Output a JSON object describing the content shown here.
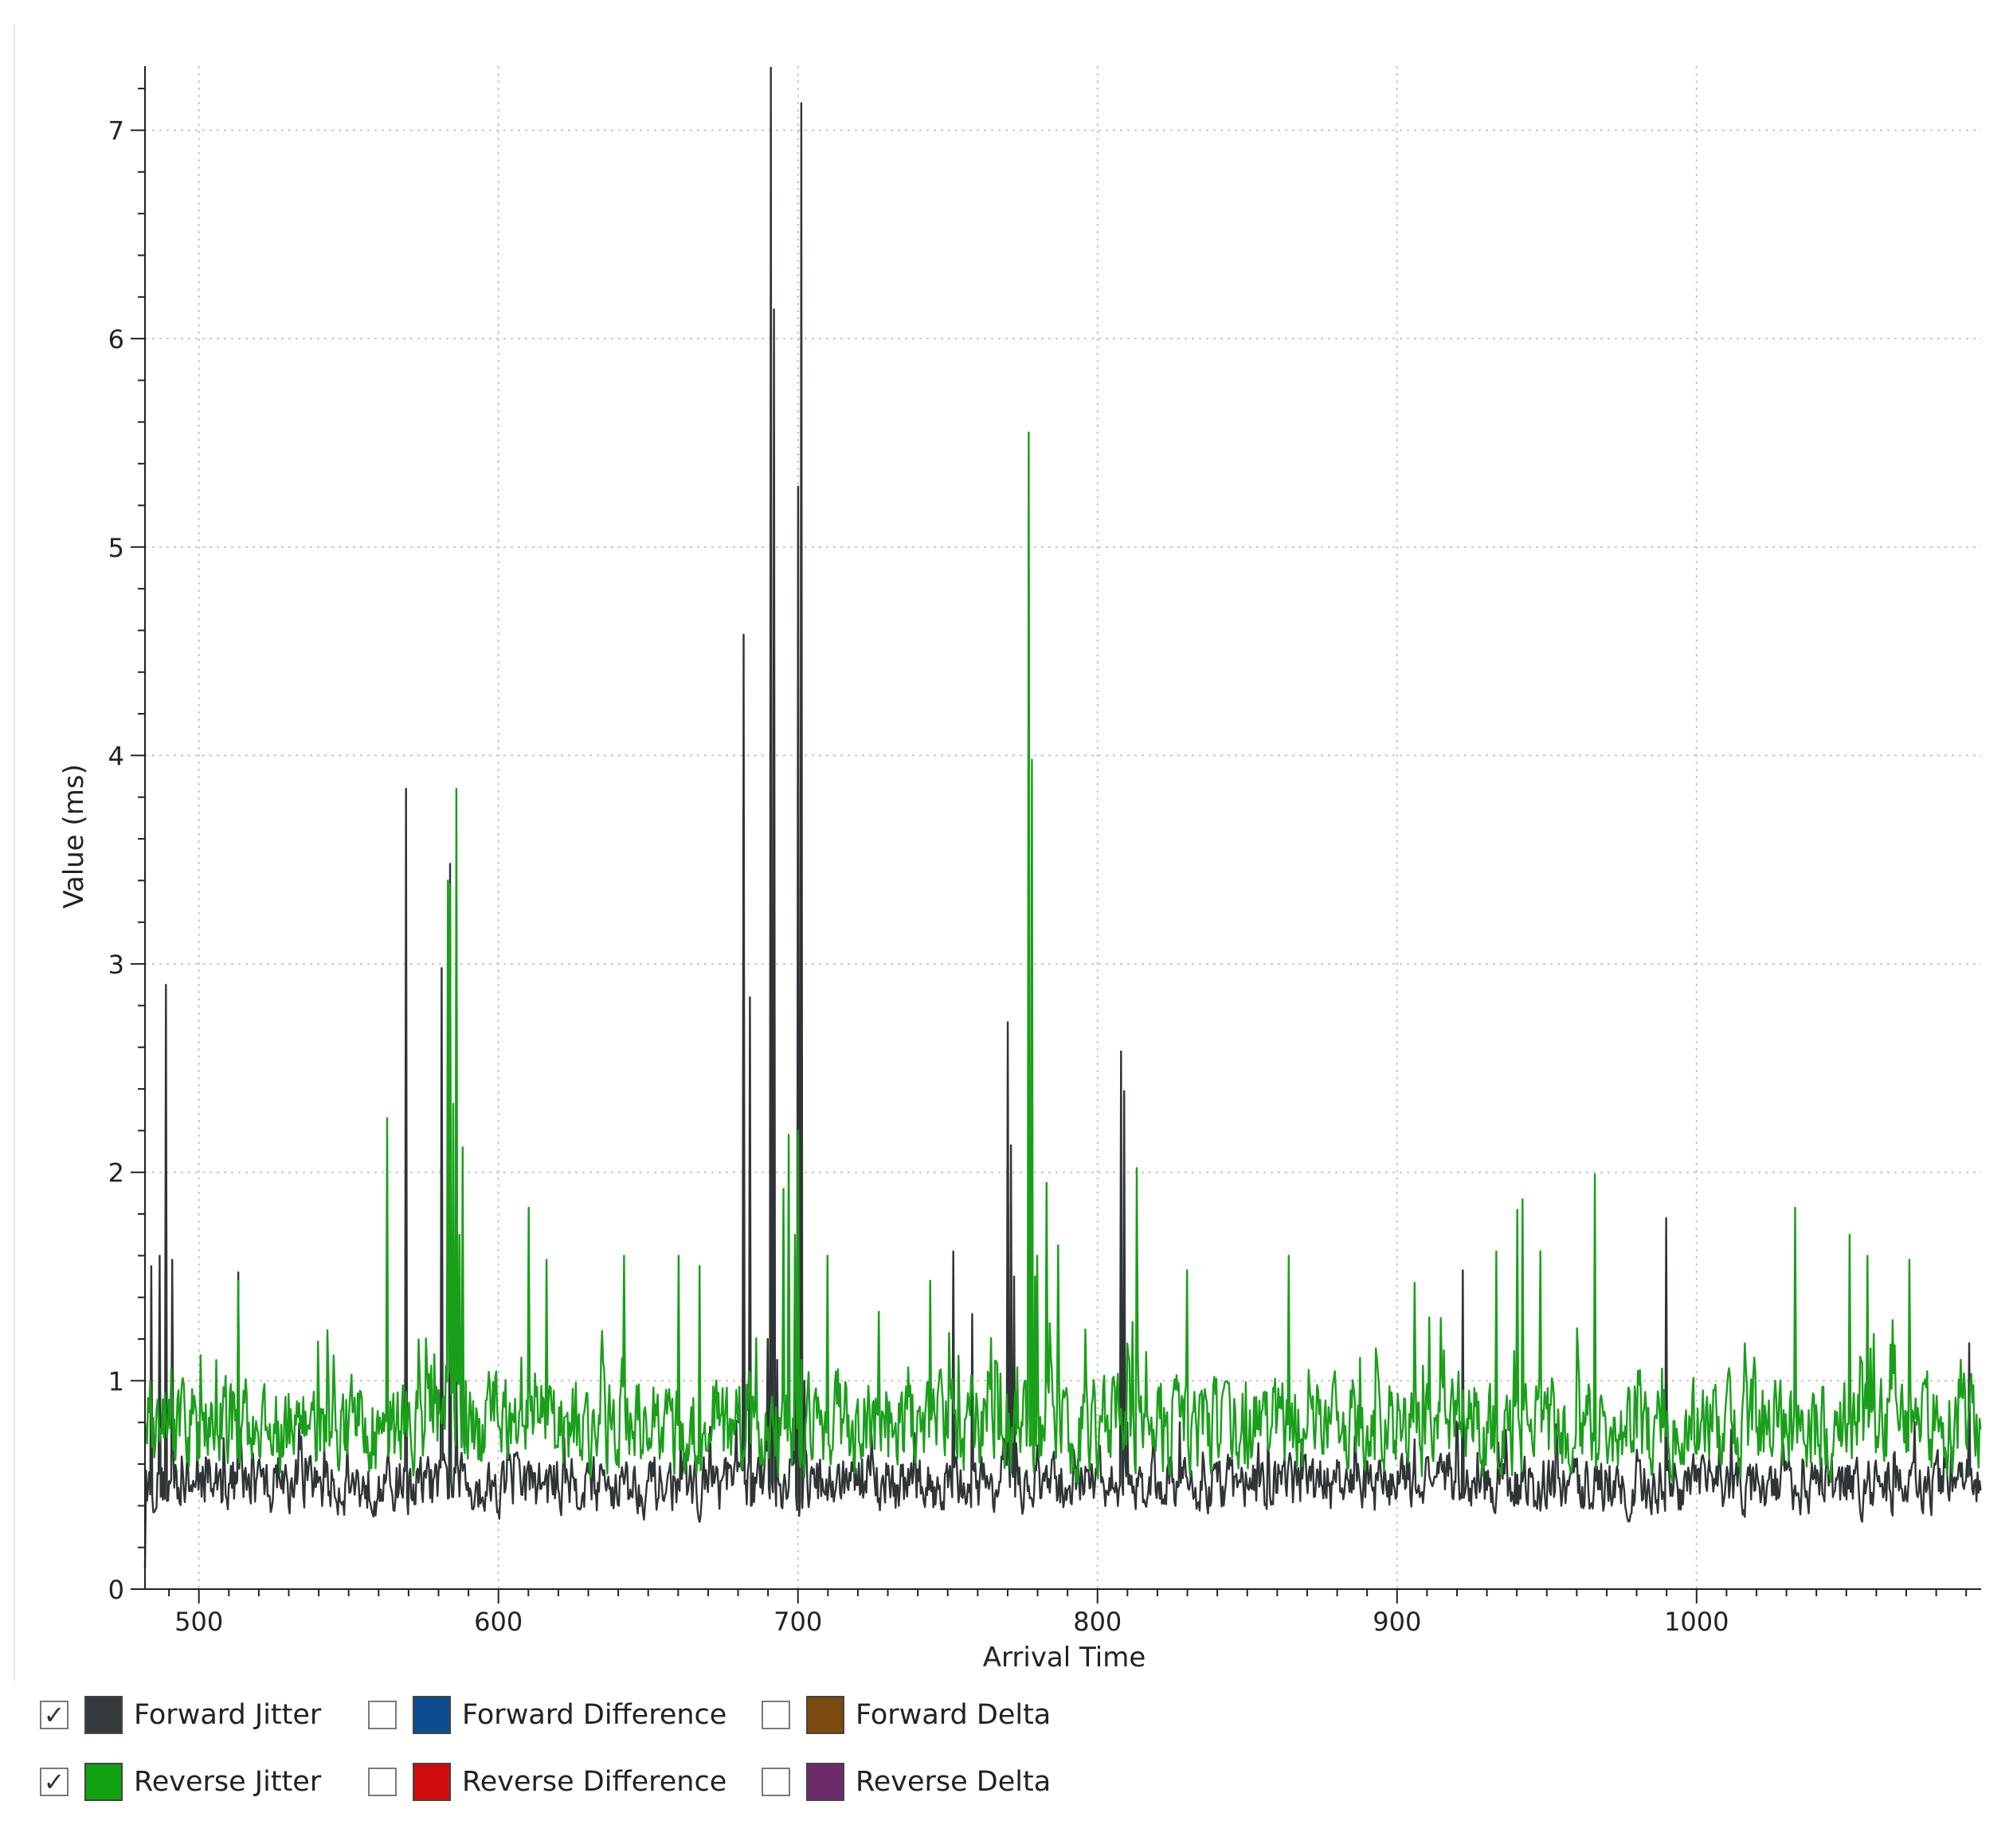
{
  "chart_data": {
    "type": "line",
    "title": "",
    "xlabel": "Arrival Time",
    "ylabel": "Value (ms)",
    "xlim": [
      482,
      1095
    ],
    "ylim": [
      0,
      7.3
    ],
    "x_ticks": [
      500,
      600,
      700,
      800,
      900,
      1000
    ],
    "y_ticks": [
      0,
      1,
      2,
      3,
      4,
      5,
      6,
      7
    ],
    "grid": true,
    "legend_position": "bottom",
    "series": [
      {
        "name": "Forward Jitter",
        "color": "#2f3437",
        "baseline": 0.5,
        "noise": 0.12,
        "x": [
          482,
          484,
          487,
          489,
          491,
          513,
          567,
          569,
          579,
          581,
          584,
          586,
          682,
          684,
          690,
          691,
          692,
          693,
          699,
          700,
          701,
          702,
          752,
          758,
          770,
          771,
          772,
          773,
          808,
          809,
          810,
          811,
          922,
          990,
          1091
        ],
        "values": [
          0.1,
          1.55,
          1.6,
          2.9,
          1.58,
          1.52,
          0.6,
          3.84,
          0.6,
          2.98,
          3.48,
          1.0,
          4.58,
          2.84,
          1.2,
          7.3,
          6.14,
          1.1,
          1.6,
          5.29,
          7.13,
          1.0,
          1.62,
          1.32,
          2.72,
          2.13,
          1.5,
          0.7,
          2.58,
          2.39,
          0.8,
          0.5,
          1.53,
          1.78,
          1.18
        ]
      },
      {
        "name": "Reverse Jitter",
        "color": "#1a9f1a",
        "baseline": 0.78,
        "noise": 0.2,
        "x": [
          482,
          513,
          563,
          564,
          583,
          584,
          585,
          586,
          587,
          588,
          589,
          610,
          616,
          642,
          660,
          667,
          695,
          697,
          699,
          700,
          701,
          710,
          727,
          744,
          776,
          777,
          778,
          779,
          780,
          783,
          787,
          813,
          830,
          864,
          906,
          933,
          940,
          942,
          948,
          966,
          1033,
          1051,
          1057,
          1071
        ],
        "values": [
          0.8,
          1.48,
          2.26,
          0.9,
          3.4,
          3.38,
          2.33,
          3.84,
          1.7,
          2.12,
          1.0,
          1.83,
          1.58,
          1.6,
          1.6,
          1.55,
          1.92,
          2.18,
          1.7,
          2.2,
          1.1,
          1.6,
          1.33,
          1.48,
          1.0,
          5.55,
          3.98,
          1.5,
          1.6,
          1.95,
          1.65,
          2.02,
          1.53,
          1.6,
          1.47,
          1.62,
          1.82,
          1.87,
          1.62,
          1.99,
          1.83,
          1.7,
          1.6,
          1.58
        ]
      }
    ]
  },
  "legend": {
    "items": [
      {
        "label": "Forward Jitter",
        "checked": true,
        "color": "#343a3e"
      },
      {
        "label": "Forward Difference",
        "checked": false,
        "color": "#0c4d91"
      },
      {
        "label": "Forward Delta",
        "checked": false,
        "color": "#7a4a0e"
      },
      {
        "label": "Reverse Jitter",
        "checked": true,
        "color": "#12a312"
      },
      {
        "label": "Reverse Difference",
        "checked": false,
        "color": "#d10b0b"
      },
      {
        "label": "Reverse Delta",
        "checked": false,
        "color": "#6b2b6b"
      }
    ]
  }
}
